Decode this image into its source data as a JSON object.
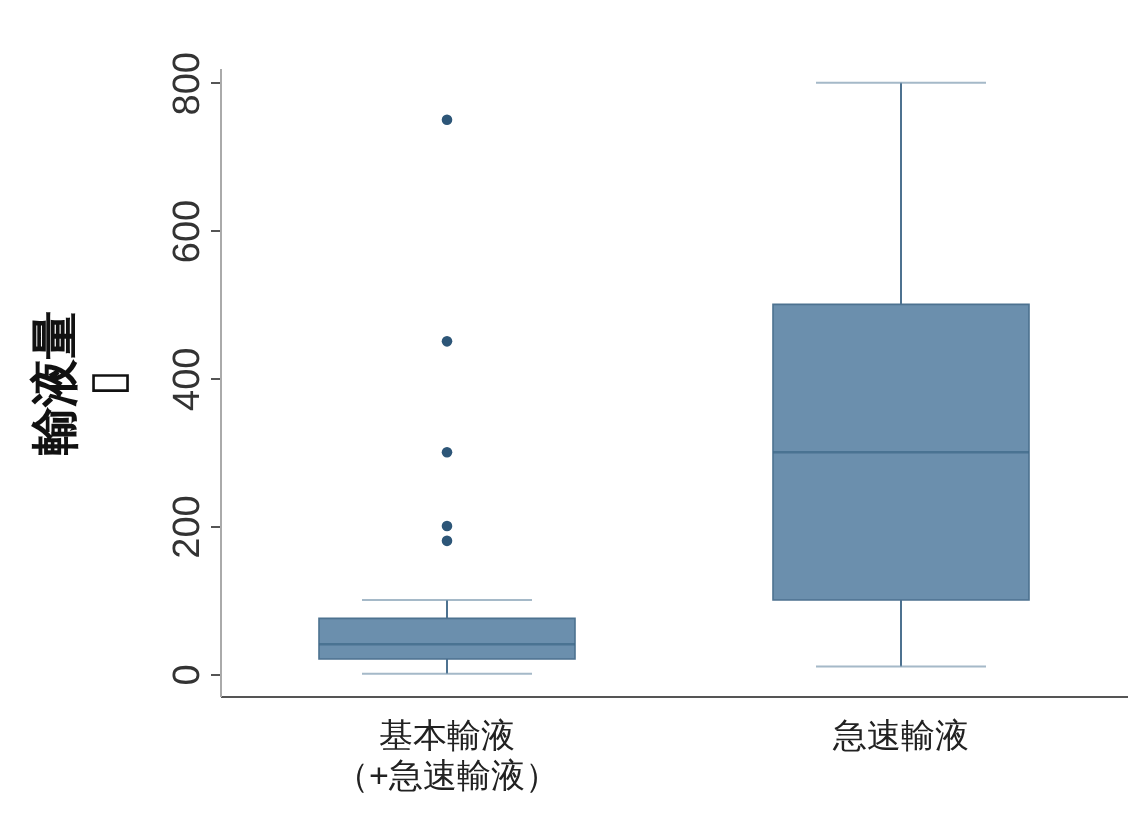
{
  "chart_data": {
    "type": "box",
    "ylabel": "輸液量\n▯",
    "categories": [
      "基本輸液（+急速輸液）",
      "急速輸液"
    ],
    "series": [
      {
        "color": "#6b8fad",
        "boxes": [
          {
            "low": 0,
            "q1": 20,
            "median": 40,
            "q3": 75,
            "high": 100,
            "outliers": [
              750,
              450,
              300,
              200,
              180
            ]
          },
          {
            "low": 10,
            "q1": 100,
            "median": 300,
            "q3": 500,
            "high": 800
          }
        ]
      }
    ],
    "ylim": [
      -30,
      820
    ],
    "yticks": [
      0,
      200,
      400,
      600,
      800
    ],
    "grid": false
  }
}
